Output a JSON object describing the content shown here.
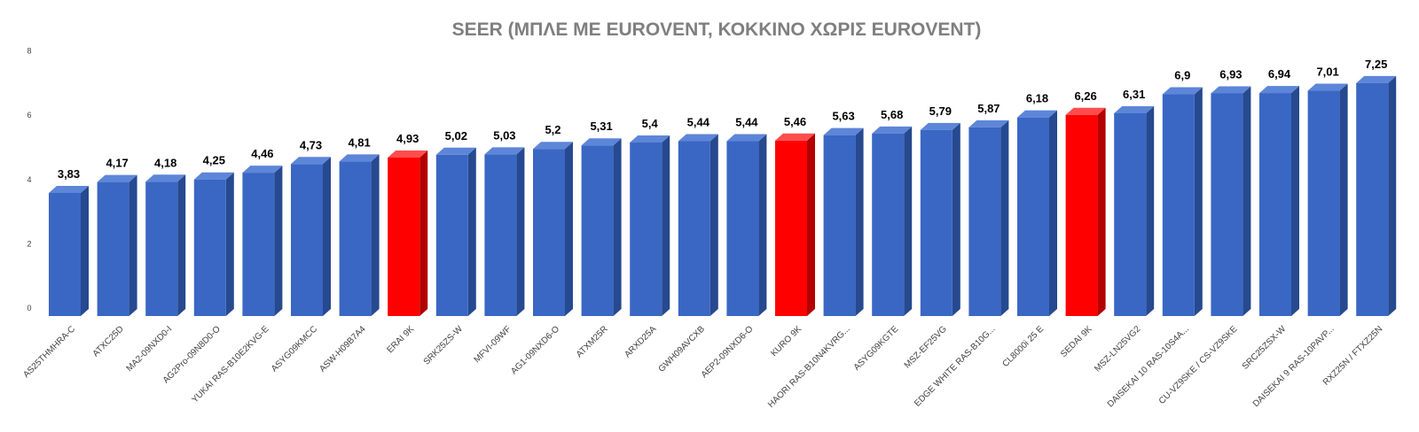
{
  "chart_data": {
    "type": "bar",
    "title": "SEER (ΜΠΛΕ ΜΕ EUROVENT, ΚΟΚΚΙΝΟ ΧΩΡΙΣ EUROVENT)",
    "ylim": [
      0,
      8
    ],
    "yticks": [
      "0",
      "2",
      "4",
      "6",
      "8"
    ],
    "grid": false,
    "categories": [
      "AS25THMHRA-C",
      "ATXC25D",
      "MA2-09NXD0-I",
      "AG2Pro-09N8D0-O",
      "YUKAI RAS-B10E2KVG-E",
      "ASYG09KMCC",
      "ASW-H09B7A4",
      "ERAI 9K",
      "SRK25ZS-W",
      "MFVI-09WF",
      "AG1-09NXD6-O",
      "ATXM25R",
      "ARXD25A",
      "GWH09AVCXB",
      "AEP2-09NXD6-O",
      "KURO 9K",
      "HAORI RAS-B10N4KVRG...",
      "ASYG09KGTE",
      "MSZ-EF25VG",
      "EDGE WHITE RAS-B10G...",
      "CL8000i 25 E",
      "SEDAI 9K",
      "MSZ-LN25VG2",
      "DAISEKAI 10 RAS-10S4A...",
      "CU-VZ9SKE / CS-VZ9SKE",
      "SRC25ZSX-W",
      "DAISEKAI 9 RAS-10PAVP...",
      "RXZ25N / FTXZ25N"
    ],
    "values": [
      3.83,
      4.17,
      4.18,
      4.25,
      4.46,
      4.73,
      4.81,
      4.93,
      5.02,
      5.03,
      5.2,
      5.31,
      5.4,
      5.44,
      5.44,
      5.46,
      5.63,
      5.68,
      5.79,
      5.87,
      6.18,
      6.26,
      6.31,
      6.9,
      6.93,
      6.94,
      7.01,
      7.25
    ],
    "value_labels": [
      "3,83",
      "4,17",
      "4,18",
      "4,25",
      "4,46",
      "4,73",
      "4,81",
      "4,93",
      "5,02",
      "5,03",
      "5,2",
      "5,31",
      "5,4",
      "5,44",
      "5,44",
      "5,46",
      "5,63",
      "5,68",
      "5,79",
      "5,87",
      "6,18",
      "6,26",
      "6,31",
      "6,9",
      "6,93",
      "6,94",
      "7,01",
      "7,25"
    ],
    "eurovent": [
      true,
      true,
      true,
      true,
      true,
      true,
      true,
      false,
      true,
      true,
      true,
      true,
      true,
      true,
      true,
      false,
      true,
      true,
      true,
      true,
      true,
      false,
      true,
      true,
      true,
      true,
      true,
      true
    ],
    "colors": {
      "eurovent": {
        "front": "#3a67c4",
        "top": "#5d86d8",
        "side": "#26498f"
      },
      "no_eurovent": {
        "front": "#ff0000",
        "top": "#ff4d4d",
        "side": "#b30000"
      }
    }
  }
}
